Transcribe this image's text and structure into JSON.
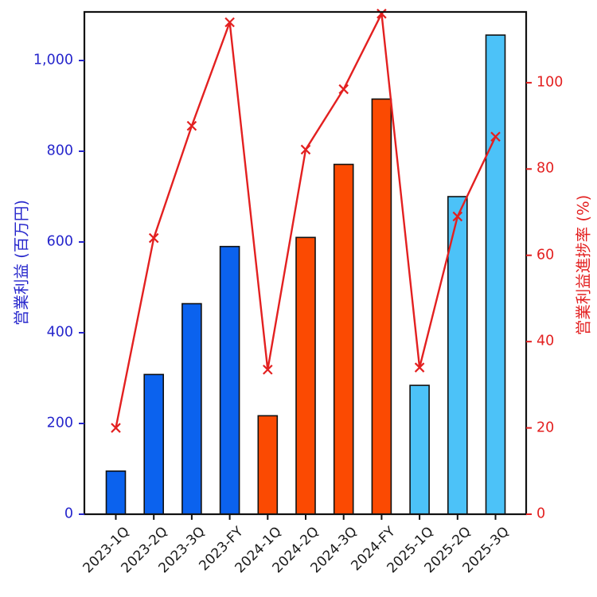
{
  "chart_data": {
    "type": "bar+line",
    "categories": [
      "2023-1Q",
      "2023-2Q",
      "2023-3Q",
      "2023-FY",
      "2024-1Q",
      "2024-2Q",
      "2024-3Q",
      "2024-FY",
      "2025-1Q",
      "2025-2Q",
      "2025-3Q"
    ],
    "bar_series": {
      "name": "営業利益",
      "axis": "left",
      "values": [
        95,
        308,
        464,
        590,
        217,
        610,
        771,
        915,
        284,
        700,
        1056
      ],
      "colors": [
        "#0b62ee",
        "#0b62ee",
        "#0b62ee",
        "#0b62ee",
        "#fb4a02",
        "#fb4a02",
        "#fb4a02",
        "#fb4a02",
        "#4cc2f8",
        "#4cc2f8",
        "#4cc2f8"
      ],
      "edge_color": "#111111"
    },
    "line_series": {
      "name": "営業利益進捗率",
      "axis": "right",
      "values": [
        20,
        64,
        90,
        114,
        33.5,
        84.5,
        98.5,
        116,
        34,
        69,
        87.5
      ],
      "color": "#e32020",
      "marker": "x"
    },
    "left_axis": {
      "label": "営業利益 (百万円)",
      "color": "#2626cc",
      "ticks": [
        0,
        200,
        400,
        600,
        800,
        1000
      ],
      "tick_labels": [
        "0",
        "200",
        "400",
        "600",
        "800",
        "1,000"
      ],
      "range": [
        0,
        1107
      ]
    },
    "right_axis": {
      "label": "営業利益進捗率 (%)",
      "color": "#e32020",
      "ticks": [
        0,
        20,
        40,
        60,
        80,
        100
      ],
      "tick_labels": [
        "0",
        "20",
        "40",
        "60",
        "80",
        "100"
      ],
      "range": [
        0,
        116.4
      ]
    },
    "x_axis": {
      "color": "#111111",
      "tick_label_rotation_deg": 45
    },
    "background": "#ffffff",
    "legend": "none",
    "grid": "off"
  }
}
